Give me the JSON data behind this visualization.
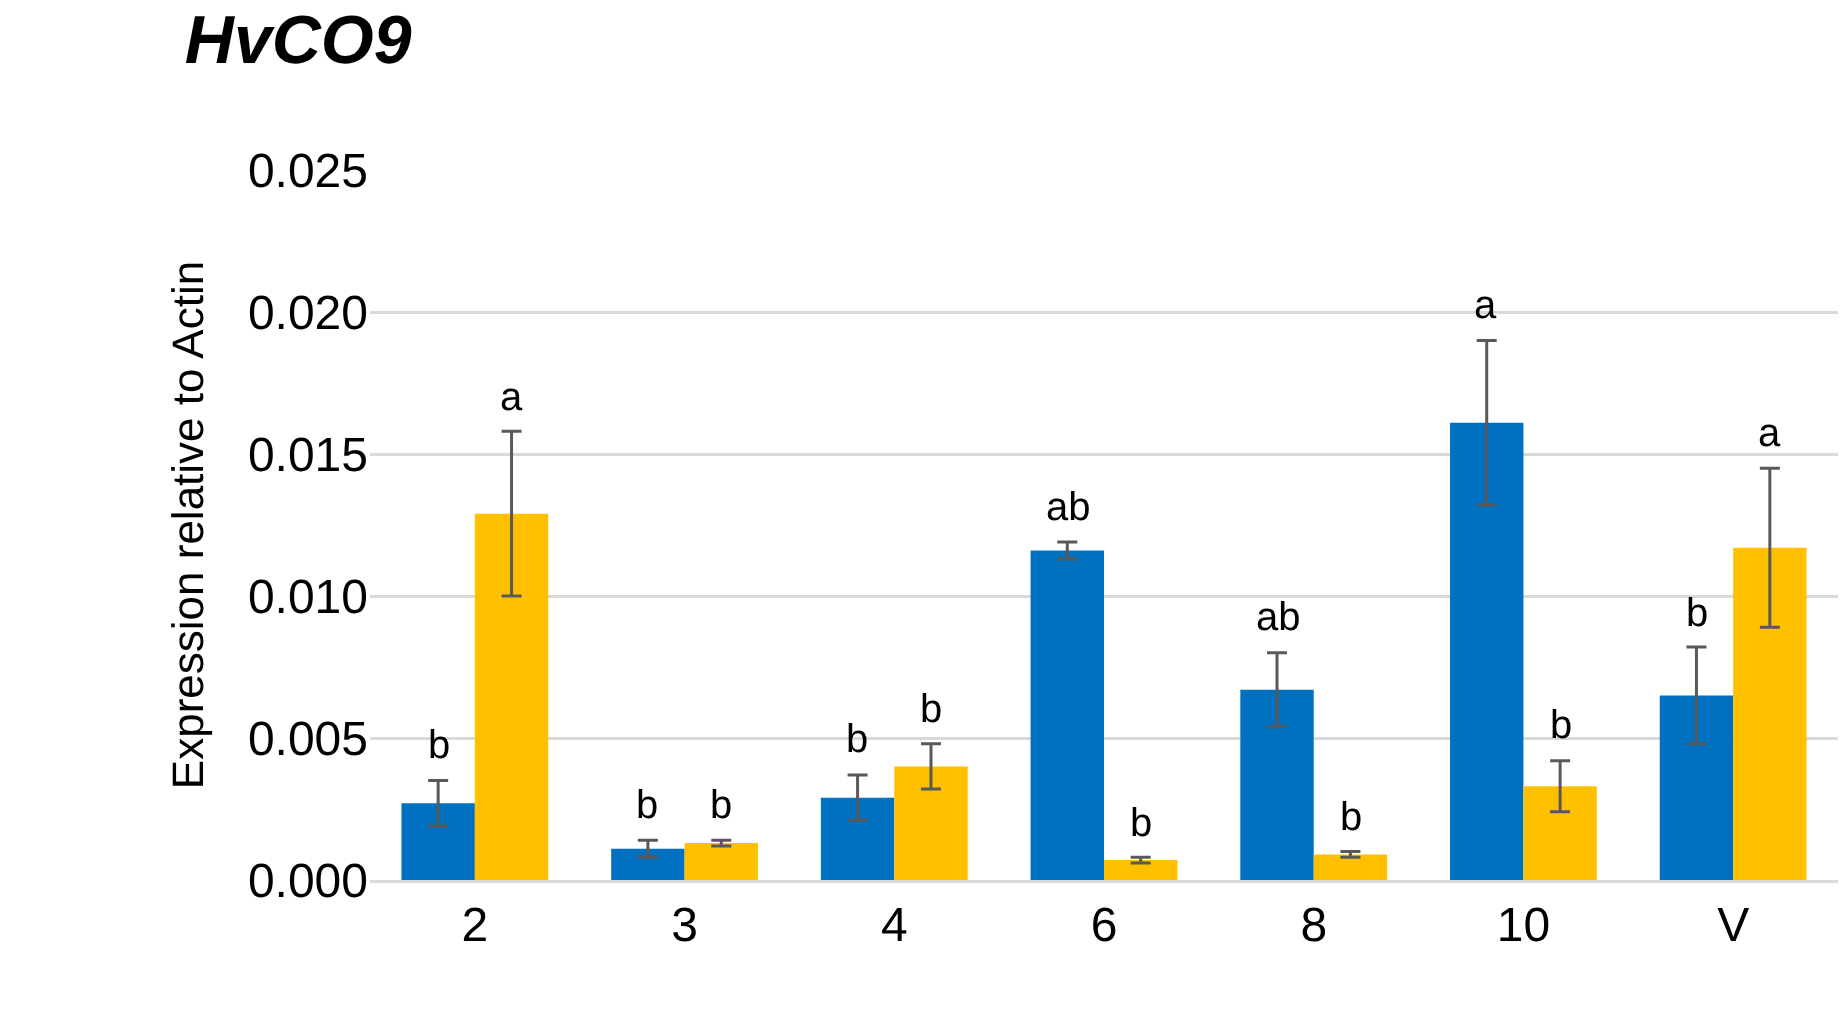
{
  "chart_data": {
    "type": "bar",
    "title": "HvCO9",
    "ylabel": "Expression relative to Actin",
    "categories": [
      "2",
      "3",
      "4",
      "6",
      "8",
      "10",
      "V"
    ],
    "series": [
      {
        "color": "#0070c0",
        "values": [
          0.0027,
          0.0011,
          0.0029,
          0.0116,
          0.0067,
          0.0161,
          0.0065
        ],
        "errors": [
          0.0008,
          0.0003,
          0.0008,
          0.0003,
          0.0013,
          0.0029,
          0.0017
        ]
      },
      {
        "color": "#ffc000",
        "values": [
          0.0129,
          0.0013,
          0.004,
          0.0007,
          0.0009,
          0.0033,
          0.0117
        ],
        "errors": [
          0.0029,
          0.0001,
          0.0008,
          0.0001,
          0.0001,
          0.0009,
          0.0028
        ]
      }
    ],
    "ylim": [
      0,
      0.025
    ],
    "yticks": [
      {
        "value": 0,
        "label": "0.000"
      },
      {
        "value": 0.005,
        "label": "0.005"
      },
      {
        "value": 0.01,
        "label": "0.010"
      },
      {
        "value": 0.015,
        "label": "0.015"
      },
      {
        "value": 0.02,
        "label": "0.020"
      },
      {
        "value": 0.025,
        "label": "0.025"
      }
    ],
    "grid": "y",
    "annotations": [
      {
        "text": "b",
        "x": "2",
        "y": 0.0027
      },
      {
        "text": "a",
        "x": "2",
        "y": 0.0129
      },
      {
        "text": "b",
        "x": "3",
        "y": 0.0011
      },
      {
        "text": "b",
        "x": "3",
        "y": 0.0013
      },
      {
        "text": "b",
        "x": "4",
        "y": 0.0029
      },
      {
        "text": "b",
        "x": "4",
        "y": 0.004
      },
      {
        "text": "ab",
        "x": "6",
        "y": 0.0116
      },
      {
        "text": "b",
        "x": "6",
        "y": 0.0007
      },
      {
        "text": "ab",
        "x": "8",
        "y": 0.0067
      },
      {
        "text": "b",
        "x": "8",
        "y": 0.0009
      },
      {
        "text": "a",
        "x": "10",
        "y": 0.0161
      },
      {
        "text": "b",
        "x": "10",
        "y": 0.0033
      },
      {
        "text": "b",
        "x": "V",
        "y": 0.0065
      },
      {
        "text": "a",
        "x": "V",
        "y": 0.0117
      }
    ]
  }
}
